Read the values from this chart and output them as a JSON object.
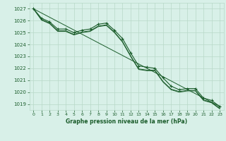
{
  "bg_color": "#d8f0e8",
  "grid_color": "#b8d8c8",
  "line_color": "#1a5c2a",
  "title": "Graphe pression niveau de la mer (hPa)",
  "xlim": [
    -0.5,
    23.5
  ],
  "ylim": [
    1018.5,
    1027.5
  ],
  "yticks": [
    1019,
    1020,
    1021,
    1022,
    1023,
    1024,
    1025,
    1026,
    1027
  ],
  "xticks": [
    0,
    1,
    2,
    3,
    4,
    5,
    6,
    7,
    8,
    9,
    10,
    11,
    12,
    13,
    14,
    15,
    16,
    17,
    18,
    19,
    20,
    21,
    22,
    23
  ],
  "series": [
    {
      "x": [
        0,
        1,
        2,
        3,
        4,
        5,
        6,
        7,
        8,
        9,
        10,
        11,
        12,
        13,
        14,
        15,
        16,
        17,
        18,
        19,
        20,
        21,
        22,
        23
      ],
      "y": [
        1027.0,
        1026.2,
        1025.9,
        1025.3,
        1025.3,
        1025.0,
        1025.2,
        1025.3,
        1025.7,
        1025.8,
        1025.2,
        1024.5,
        1023.3,
        1022.2,
        1022.1,
        1022.0,
        1021.2,
        1020.5,
        1020.2,
        1020.3,
        1020.3,
        1019.5,
        1019.3,
        1018.8
      ],
      "marker": true,
      "linewidth": 0.8
    },
    {
      "x": [
        0,
        23
      ],
      "y": [
        1027.0,
        1018.8
      ],
      "marker": false,
      "linewidth": 0.7
    },
    {
      "x": [
        0,
        1,
        2,
        3,
        4,
        5,
        6,
        7,
        8,
        9,
        10,
        11,
        12,
        13,
        14,
        15,
        16,
        17,
        18,
        19,
        20,
        21,
        22,
        23
      ],
      "y": [
        1027.0,
        1026.1,
        1025.8,
        1025.15,
        1025.15,
        1024.85,
        1025.05,
        1025.15,
        1025.55,
        1025.65,
        1025.05,
        1024.25,
        1023.05,
        1021.95,
        1021.85,
        1021.85,
        1020.9,
        1020.25,
        1020.05,
        1020.15,
        1020.15,
        1019.35,
        1019.15,
        1018.65
      ],
      "marker": false,
      "linewidth": 0.7
    },
    {
      "x": [
        0,
        1,
        2,
        3,
        4,
        5,
        6,
        7,
        8,
        9,
        10,
        11,
        12,
        13,
        14,
        15,
        16,
        17,
        18,
        19,
        20,
        21,
        22,
        23
      ],
      "y": [
        1027.0,
        1026.05,
        1025.75,
        1025.1,
        1025.1,
        1024.8,
        1025.0,
        1025.1,
        1025.5,
        1025.6,
        1025.0,
        1024.2,
        1023.0,
        1021.9,
        1021.8,
        1021.8,
        1020.85,
        1020.2,
        1020.0,
        1020.1,
        1020.1,
        1019.3,
        1019.1,
        1018.6
      ],
      "marker": false,
      "linewidth": 0.7
    }
  ]
}
